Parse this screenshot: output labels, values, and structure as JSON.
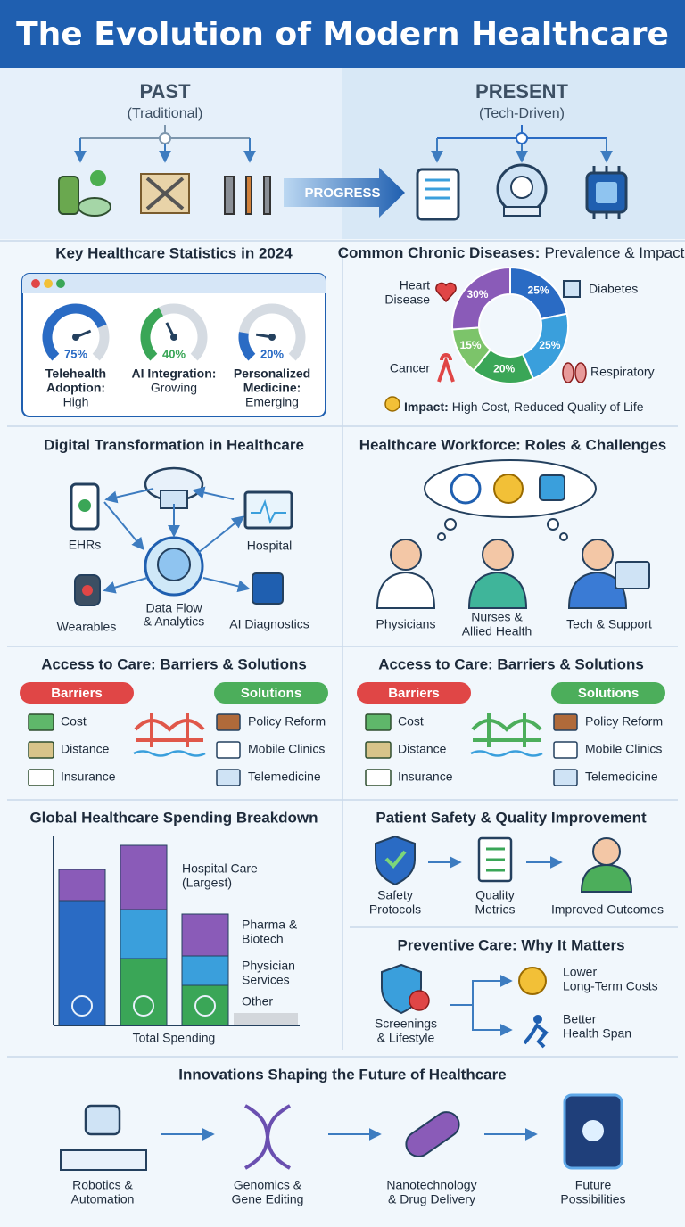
{
  "header": {
    "title": "The Evolution of Modern Healthcare"
  },
  "timeline": {
    "past": {
      "title": "PAST",
      "subtitle": "(Traditional)"
    },
    "present": {
      "title": "PRESENT",
      "subtitle": "(Tech-Driven)"
    },
    "arrow": "PROGRESS"
  },
  "stats": {
    "title": "Key Healthcare Statistics in 2024",
    "gauges": [
      {
        "value": 75,
        "value_label": "75%",
        "label": [
          "Telehealth",
          "Adoption:"
        ],
        "status": "High",
        "color": "#2a6bc4"
      },
      {
        "value": 40,
        "value_label": "40%",
        "label": [
          "AI Integration:"
        ],
        "status": "Growing",
        "color": "#3aa657"
      },
      {
        "value": 20,
        "value_label": "20%",
        "label": [
          "Personalized",
          "Medicine:"
        ],
        "status": "Emerging",
        "color": "#2a6bc4"
      }
    ]
  },
  "diseases": {
    "title": "Common Chronic Diseases:",
    "subtitle": "Prevalence & Impact",
    "segments": [
      {
        "value": 25,
        "value_label": "25%",
        "color": "#2a6bc4"
      },
      {
        "value": 25,
        "value_label": "25%",
        "color": "#3a9fdc"
      },
      {
        "value": 20,
        "value_label": "20%",
        "color": "#3aa657"
      },
      {
        "value": 15,
        "value_label": "15%",
        "color": "#7cc46a"
      },
      {
        "value": 30,
        "value_label": "30%",
        "color": "#8a5bb8"
      }
    ],
    "labels": {
      "heart": [
        "Heart",
        "Disease"
      ],
      "diabetes": "Diabetes",
      "cancer": "Cancer",
      "respiratory": "Respiratory"
    },
    "impact": {
      "label": "Impact:",
      "text": "High Cost, Reduced Quality of Life"
    }
  },
  "digital": {
    "title": "Digital Transformation in Healthcare",
    "nodes": [
      "EHRs",
      "Hospital",
      "Wearables",
      "AI Diagnostics"
    ],
    "center": [
      "Data Flow",
      "& Analytics"
    ]
  },
  "workforce": {
    "title": "Healthcare Workforce: Roles & Challenges",
    "roles": [
      [
        "Physicians"
      ],
      [
        "Nurses &",
        "Allied Health"
      ],
      [
        "Tech & Support"
      ]
    ]
  },
  "access": [
    {
      "title": "Access to Care: Barriers & Solutions",
      "barriers": {
        "title": "Barriers",
        "items": [
          "Cost",
          "Distance",
          "Insurance"
        ]
      },
      "solutions": {
        "title": "Solutions",
        "items": [
          "Policy Reform",
          "Mobile Clinics",
          "Telemedicine"
        ]
      }
    },
    {
      "title": "Access to Care: Barriers & Solutions",
      "barriers": {
        "title": "Barriers",
        "items": [
          "Cost",
          "Distance",
          "Insurance"
        ]
      },
      "solutions": {
        "title": "Solutions",
        "items": [
          "Policy Reform",
          "Mobile Clinics",
          "Telemedicine"
        ]
      }
    }
  ],
  "spending": {
    "title": "Global Healthcare Spending Breakdown",
    "bars": [
      {
        "segments": [
          {
            "value": 140,
            "color": "#2a6bc4"
          },
          {
            "value": 35,
            "color": "#8a5bb8"
          }
        ]
      },
      {
        "segments": [
          {
            "value": 75,
            "color": "#3aa657"
          },
          {
            "value": 55,
            "color": "#3a9fdc"
          },
          {
            "value": 72,
            "color": "#8a5bb8"
          }
        ]
      },
      {
        "segments": [
          {
            "value": 45,
            "color": "#3aa657"
          },
          {
            "value": 33,
            "color": "#3a9fdc"
          },
          {
            "value": 47,
            "color": "#8a5bb8"
          }
        ]
      }
    ],
    "labels": [
      [
        "Hospital Care",
        "(Largest)"
      ],
      [
        "Pharma &",
        "Biotech"
      ],
      [
        "Physician",
        "Services"
      ],
      [
        "Other"
      ]
    ],
    "axis_label": "Total Spending"
  },
  "safety": {
    "title": "Patient Safety & Quality Improvement",
    "steps": [
      [
        "Safety",
        "Protocols"
      ],
      [
        "Quality",
        "Metrics"
      ],
      [
        "Improved Outcomes"
      ]
    ]
  },
  "preventive": {
    "title": "Preventive Care: Why It Matters",
    "source": [
      "Screenings",
      "& Lifestyle"
    ],
    "outcomes": [
      [
        "Lower",
        "Long-Term Costs"
      ],
      [
        "Better",
        "Health Span"
      ]
    ]
  },
  "innovations": {
    "title": "Innovations Shaping the Future of Healthcare",
    "items": [
      [
        "Robotics &",
        "Automation"
      ],
      [
        "Genomics &",
        "Gene Editing"
      ],
      [
        "Nanotechnology",
        "& Drug Delivery"
      ],
      [
        "Future",
        "Possibilities"
      ]
    ]
  }
}
